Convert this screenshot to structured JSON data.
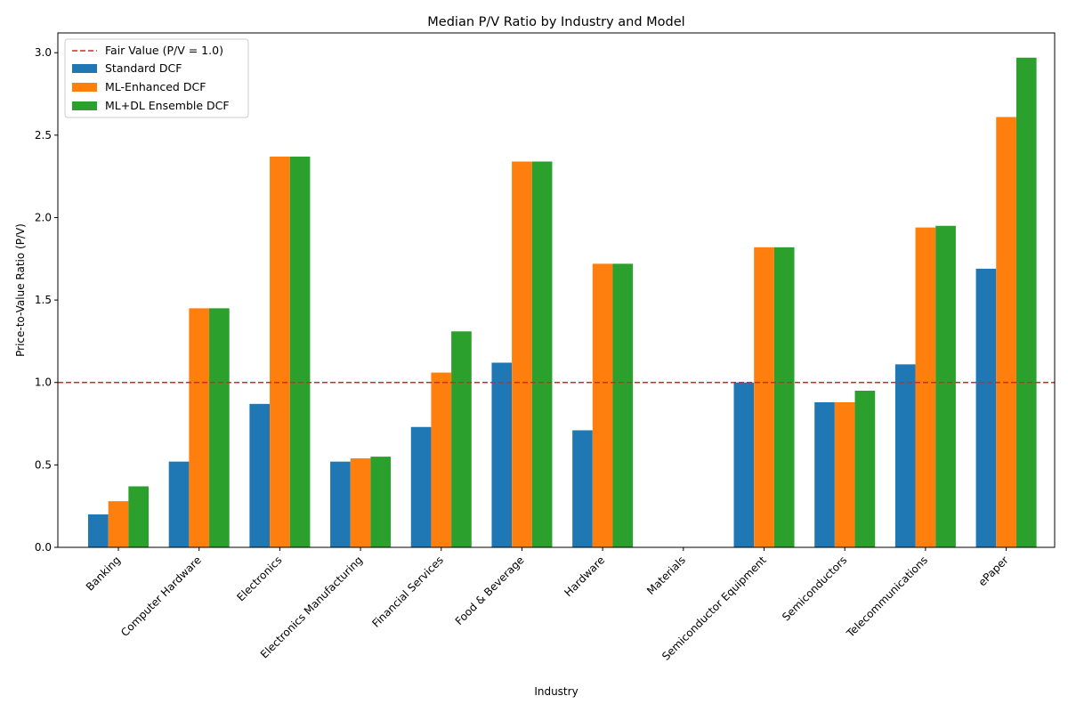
{
  "chart_data": {
    "type": "bar",
    "title": "Median P/V Ratio by Industry and Model",
    "xlabel": "Industry",
    "ylabel": "Price-to-Value Ratio (P/V)",
    "ylim": [
      0,
      3.12
    ],
    "yticks": [
      0.0,
      0.5,
      1.0,
      1.5,
      2.0,
      2.5,
      3.0
    ],
    "ytick_labels": [
      "0.0",
      "0.5",
      "1.0",
      "1.5",
      "2.0",
      "2.5",
      "3.0"
    ],
    "grid": false,
    "legend_position": "top-left",
    "categories": [
      "Banking",
      "Computer Hardware",
      "Electronics",
      "Electronics Manufacturing",
      "Financial Services",
      "Food & Beverage",
      "Hardware",
      "Materials",
      "Semiconductor Equipment",
      "Semiconductors",
      "Telecommunications",
      "ePaper"
    ],
    "series": [
      {
        "name": "Standard DCF",
        "color": "#1f77b4",
        "values": [
          0.2,
          0.52,
          0.87,
          0.52,
          0.73,
          1.12,
          0.71,
          0.0,
          1.0,
          0.88,
          1.11,
          1.69
        ]
      },
      {
        "name": "ML-Enhanced DCF",
        "color": "#ff7f0e",
        "values": [
          0.28,
          1.45,
          2.37,
          0.54,
          1.06,
          2.34,
          1.72,
          0.0,
          1.82,
          0.88,
          1.94,
          2.61
        ]
      },
      {
        "name": "ML+DL Ensemble DCF",
        "color": "#2ca02c",
        "values": [
          0.37,
          1.45,
          2.37,
          0.55,
          1.31,
          2.34,
          1.72,
          0.0,
          1.82,
          0.95,
          1.95,
          2.97
        ]
      }
    ],
    "reference_line": {
      "name": "Fair Value (P/V = 1.0)",
      "value": 1.0,
      "color": "#d62728",
      "style": "dashed"
    }
  }
}
